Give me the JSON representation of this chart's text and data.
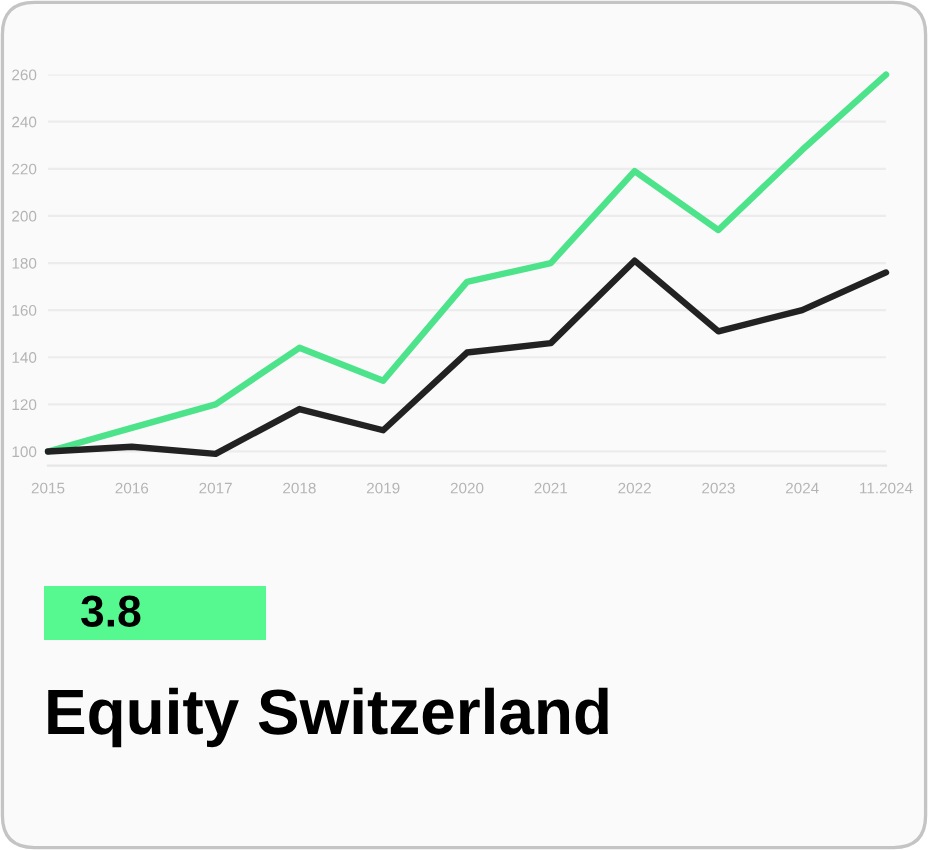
{
  "chart_data": {
    "type": "line",
    "title": "Equity Switzerland",
    "annotations": [
      "3.8"
    ],
    "categories": [
      "2015",
      "2016",
      "2017",
      "2018",
      "2019",
      "2020",
      "2021",
      "2022",
      "2023",
      "2024",
      "11.2024"
    ],
    "series": [
      {
        "color": "#4de38b",
        "values": [
          100,
          110,
          120,
          144,
          130,
          172,
          180,
          219,
          194,
          228,
          260
        ]
      },
      {
        "color": "#222222",
        "values": [
          100,
          102,
          99,
          118,
          109,
          142,
          146,
          181,
          151,
          160,
          176
        ]
      }
    ],
    "ylim": [
      94,
      260
    ],
    "yticks": [
      100,
      120,
      140,
      160,
      180,
      200,
      220,
      240,
      260
    ],
    "grid": "y",
    "line_style": "solid"
  }
}
